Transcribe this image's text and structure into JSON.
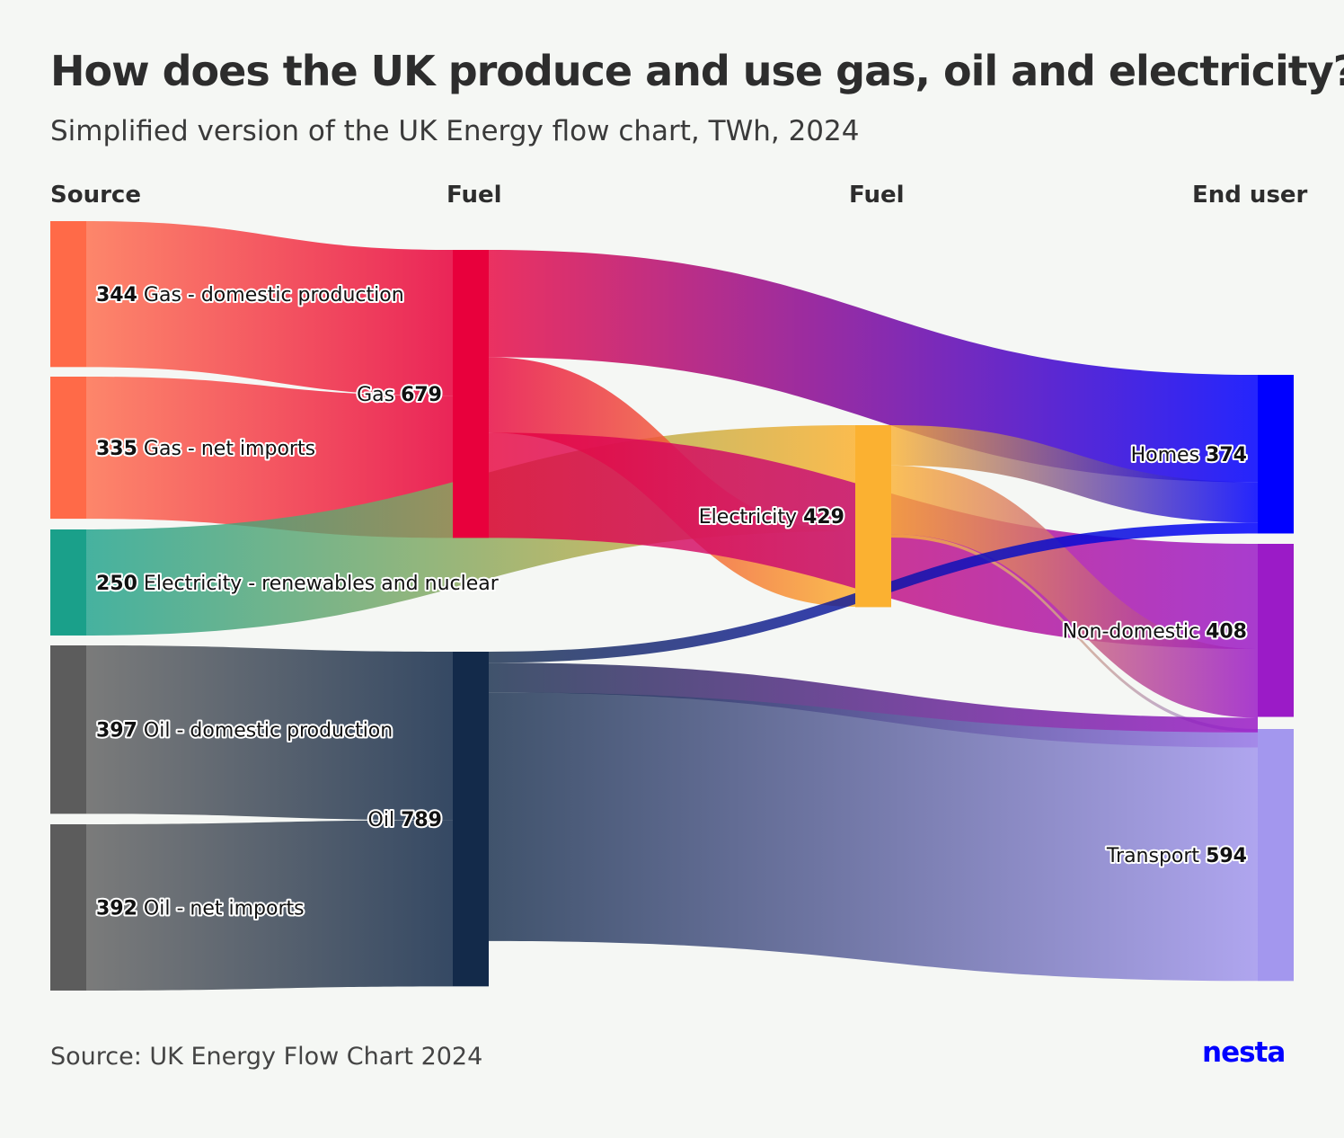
{
  "title": "How does the UK produce and use gas, oil and electricity?",
  "subtitle": "Simplified version of the UK Energy flow chart, TWh, 2024",
  "columns": [
    "Source",
    "Fuel",
    "Fuel",
    "End user"
  ],
  "source_note": "Source: UK Energy Flow Chart 2024",
  "logo": "nesta",
  "colors": {
    "gas_source": "#ff6a48",
    "gas_fuel": "#e8003c",
    "elec_source": "#1aa08a",
    "elec_fuel": "#fbb131",
    "oil_source": "#5c5c5c",
    "oil_fuel": "#132a4a",
    "homes": "#0000ff",
    "non_domestic": "#9b1bc7",
    "transport": "#a397ee"
  },
  "chart_data": {
    "type": "sankey",
    "unit": "TWh",
    "nodes": [
      {
        "id": "gas_dom",
        "name": "Gas - domestic production",
        "value": 344,
        "column": 0
      },
      {
        "id": "gas_imp",
        "name": "Gas - net imports",
        "value": 335,
        "column": 0
      },
      {
        "id": "elec_ren",
        "name": "Electricity - renewables and nuclear",
        "value": 250,
        "column": 0
      },
      {
        "id": "oil_dom",
        "name": "Oil - domestic production",
        "value": 397,
        "column": 0
      },
      {
        "id": "oil_imp",
        "name": "Oil - net imports",
        "value": 392,
        "column": 0
      },
      {
        "id": "gas",
        "name": "Gas",
        "value": 679,
        "column": 1
      },
      {
        "id": "oil",
        "name": "Oil",
        "value": 789,
        "column": 1
      },
      {
        "id": "elec",
        "name": "Electricity",
        "value": 429,
        "column": 2
      },
      {
        "id": "homes",
        "name": "Homes",
        "value": 374,
        "column": 3
      },
      {
        "id": "nondom",
        "name": "Non-domestic",
        "value": 408,
        "column": 3
      },
      {
        "id": "transport",
        "name": "Transport",
        "value": 594,
        "column": 3
      }
    ],
    "links": [
      {
        "source": "gas_dom",
        "target": "gas",
        "value": 344
      },
      {
        "source": "gas_imp",
        "target": "gas",
        "value": 335
      },
      {
        "source": "elec_ren",
        "target": "elec",
        "value": 250
      },
      {
        "source": "oil_dom",
        "target": "oil",
        "value": 397
      },
      {
        "source": "oil_imp",
        "target": "oil",
        "value": 392
      },
      {
        "source": "gas",
        "target": "homes",
        "value": 253
      },
      {
        "source": "gas",
        "target": "elec",
        "value": 178
      },
      {
        "source": "gas",
        "target": "nondom",
        "value": 248
      },
      {
        "source": "elec",
        "target": "homes",
        "value": 95
      },
      {
        "source": "elec",
        "target": "nondom",
        "value": 162
      },
      {
        "source": "elec",
        "target": "transport",
        "value": 8
      },
      {
        "source": "oil",
        "target": "homes",
        "value": 26
      },
      {
        "source": "oil",
        "target": "nondom",
        "value": 70
      },
      {
        "source": "oil",
        "target": "transport",
        "value": 586
      }
    ]
  }
}
